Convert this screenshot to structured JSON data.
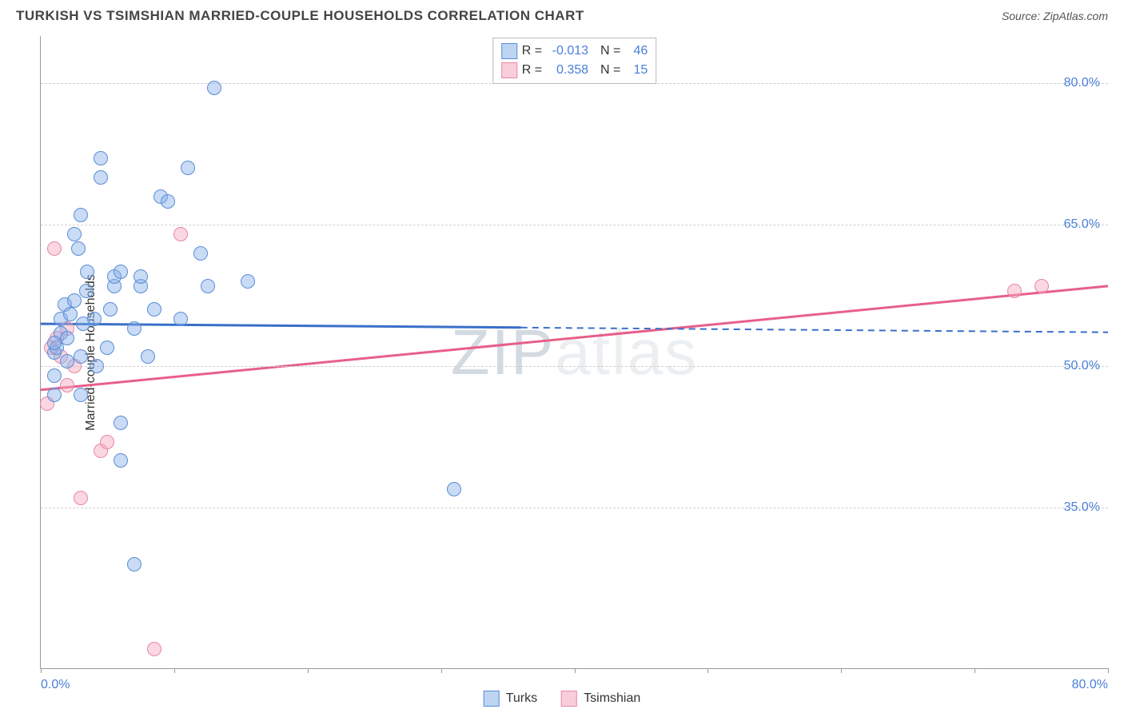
{
  "header": {
    "title": "TURKISH VS TSIMSHIAN MARRIED-COUPLE HOUSEHOLDS CORRELATION CHART",
    "source_label": "Source:",
    "source_name": "ZipAtlas.com"
  },
  "chart": {
    "type": "scatter",
    "yaxis_label": "Married-couple Households",
    "background_color": "#ffffff",
    "grid_color": "#d0d0d0",
    "axis_color": "#999999",
    "label_color": "#4a7fd8",
    "label_fontsize": 16,
    "xmin": 0,
    "xmax": 80,
    "ymin": 18,
    "ymax": 85,
    "xaxis_start_label": "0.0%",
    "xaxis_end_label": "80.0%",
    "xtick_positions": [
      0,
      10,
      20,
      30,
      40,
      50,
      60,
      70,
      80
    ],
    "ygrid": [
      {
        "value": 35,
        "label": "35.0%"
      },
      {
        "value": 50,
        "label": "50.0%"
      },
      {
        "value": 65,
        "label": "65.0%"
      },
      {
        "value": 80,
        "label": "80.0%"
      }
    ],
    "watermark": {
      "pre": "ZIP",
      "post": "atlas"
    },
    "marker_radius": 9,
    "series": {
      "blue": {
        "name": "Turks",
        "fill_color": "rgba(135,176,232,0.45)",
        "stroke_color": "#5a8dd6",
        "trend_color": "#3a6fc9",
        "trend_width": 3,
        "R": "-0.013",
        "N": "46",
        "trend": {
          "x1": 0,
          "y1": 54.5,
          "x_solid_end": 36,
          "y_solid_end": 54.1,
          "x2": 80,
          "y2": 53.6
        },
        "points": [
          [
            1,
            47
          ],
          [
            1,
            49
          ],
          [
            1,
            51.5
          ],
          [
            1.2,
            52
          ],
          [
            1.5,
            53.5
          ],
          [
            1.5,
            55
          ],
          [
            1.8,
            56.5
          ],
          [
            1,
            52.5
          ],
          [
            2,
            50.5
          ],
          [
            2,
            53
          ],
          [
            2.2,
            55.5
          ],
          [
            2.5,
            57
          ],
          [
            2.5,
            64
          ],
          [
            2.8,
            62.5
          ],
          [
            3,
            47
          ],
          [
            3,
            51
          ],
          [
            3.2,
            54.5
          ],
          [
            3.4,
            58
          ],
          [
            3.5,
            60
          ],
          [
            3,
            66
          ],
          [
            4,
            55
          ],
          [
            4.2,
            50
          ],
          [
            4.5,
            70
          ],
          [
            4.5,
            72
          ],
          [
            5,
            52
          ],
          [
            5.2,
            56
          ],
          [
            5.5,
            58.5
          ],
          [
            5.5,
            59.5
          ],
          [
            6,
            60
          ],
          [
            6,
            44
          ],
          [
            6,
            40
          ],
          [
            7,
            29
          ],
          [
            7,
            54
          ],
          [
            7.5,
            58.5
          ],
          [
            7.5,
            59.5
          ],
          [
            8,
            51
          ],
          [
            8.5,
            56
          ],
          [
            9,
            68
          ],
          [
            9.5,
            67.5
          ],
          [
            10.5,
            55
          ],
          [
            11,
            71
          ],
          [
            12,
            62
          ],
          [
            12.5,
            58.5
          ],
          [
            13,
            79.5
          ],
          [
            15.5,
            59
          ],
          [
            31,
            37
          ]
        ]
      },
      "pink": {
        "name": "Tsimshian",
        "fill_color": "rgba(244,166,188,0.45)",
        "stroke_color": "#e887a5",
        "trend_color": "#e85f8a",
        "trend_width": 3,
        "R": "0.358",
        "N": "15",
        "trend": {
          "x1": 0,
          "y1": 47.5,
          "x_solid_end": 80,
          "y_solid_end": 58.5,
          "x2": 80,
          "y2": 58.5
        },
        "points": [
          [
            0.5,
            46
          ],
          [
            0.8,
            52
          ],
          [
            1,
            62.5
          ],
          [
            1.2,
            53
          ],
          [
            1.5,
            51
          ],
          [
            2,
            54
          ],
          [
            2,
            48
          ],
          [
            2.5,
            50
          ],
          [
            3,
            36
          ],
          [
            4.5,
            41
          ],
          [
            5,
            42
          ],
          [
            8.5,
            20
          ],
          [
            10.5,
            64
          ],
          [
            73,
            58
          ],
          [
            75,
            58.5
          ]
        ]
      }
    }
  },
  "bottom_legend": {
    "item1": "Turks",
    "item2": "Tsimshian"
  }
}
